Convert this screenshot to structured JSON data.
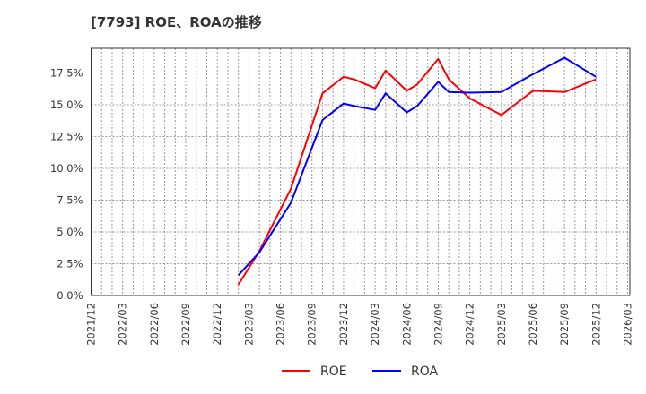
{
  "title": "[7793]  ROE、ROAの推移",
  "chart_data": {
    "type": "line",
    "title": "[7793]  ROE、ROAの推移",
    "xlabel": "",
    "ylabel": "",
    "ylim": [
      0,
      0.19
    ],
    "grid": true,
    "legend_position": "bottom",
    "x_tick_labels": [
      "2021/12",
      "2022/03",
      "2022/06",
      "2022/09",
      "2022/12",
      "2023/03",
      "2023/06",
      "2023/09",
      "2023/12",
      "2024/03",
      "2024/06",
      "2024/09",
      "2024/12",
      "2025/03",
      "2025/06",
      "2025/09",
      "2025/12",
      "2026/03"
    ],
    "y_tick_labels": [
      "0.0%",
      "2.5%",
      "5.0%",
      "7.5%",
      "10.0%",
      "12.5%",
      "15.0%",
      "17.5%"
    ],
    "y_ticks": [
      0,
      2.5,
      5.0,
      7.5,
      10.0,
      12.5,
      15.0,
      17.5
    ],
    "series": [
      {
        "name": "ROE",
        "color": "#ff0000",
        "x": [
          "2023/02",
          "2023/04",
          "2023/07",
          "2023/10",
          "2023/12",
          "2024/01",
          "2024/03",
          "2024/04",
          "2024/06",
          "2024/07",
          "2024/09",
          "2024/10",
          "2024/12",
          "2025/03",
          "2025/06",
          "2025/09",
          "2025/12"
        ],
        "values": [
          0.85,
          3.5,
          8.4,
          15.9,
          17.2,
          17.0,
          16.3,
          17.7,
          16.1,
          16.6,
          18.6,
          17.0,
          15.5,
          14.2,
          16.1,
          16.0,
          17.0
        ]
      },
      {
        "name": "ROA",
        "color": "#0000ff",
        "x": [
          "2023/02",
          "2023/04",
          "2023/07",
          "2023/10",
          "2023/12",
          "2024/01",
          "2024/03",
          "2024/04",
          "2024/06",
          "2024/07",
          "2024/09",
          "2024/10",
          "2024/12",
          "2025/03",
          "2025/06",
          "2025/09",
          "2025/12"
        ],
        "values": [
          1.6,
          3.4,
          7.3,
          13.8,
          15.1,
          14.9,
          14.6,
          15.9,
          14.4,
          14.9,
          16.8,
          16.0,
          15.95,
          16.0,
          17.4,
          18.7,
          17.2
        ]
      }
    ]
  },
  "legend": [
    {
      "label": "ROE",
      "color": "#ff0000"
    },
    {
      "label": "ROA",
      "color": "#0000ff"
    }
  ]
}
